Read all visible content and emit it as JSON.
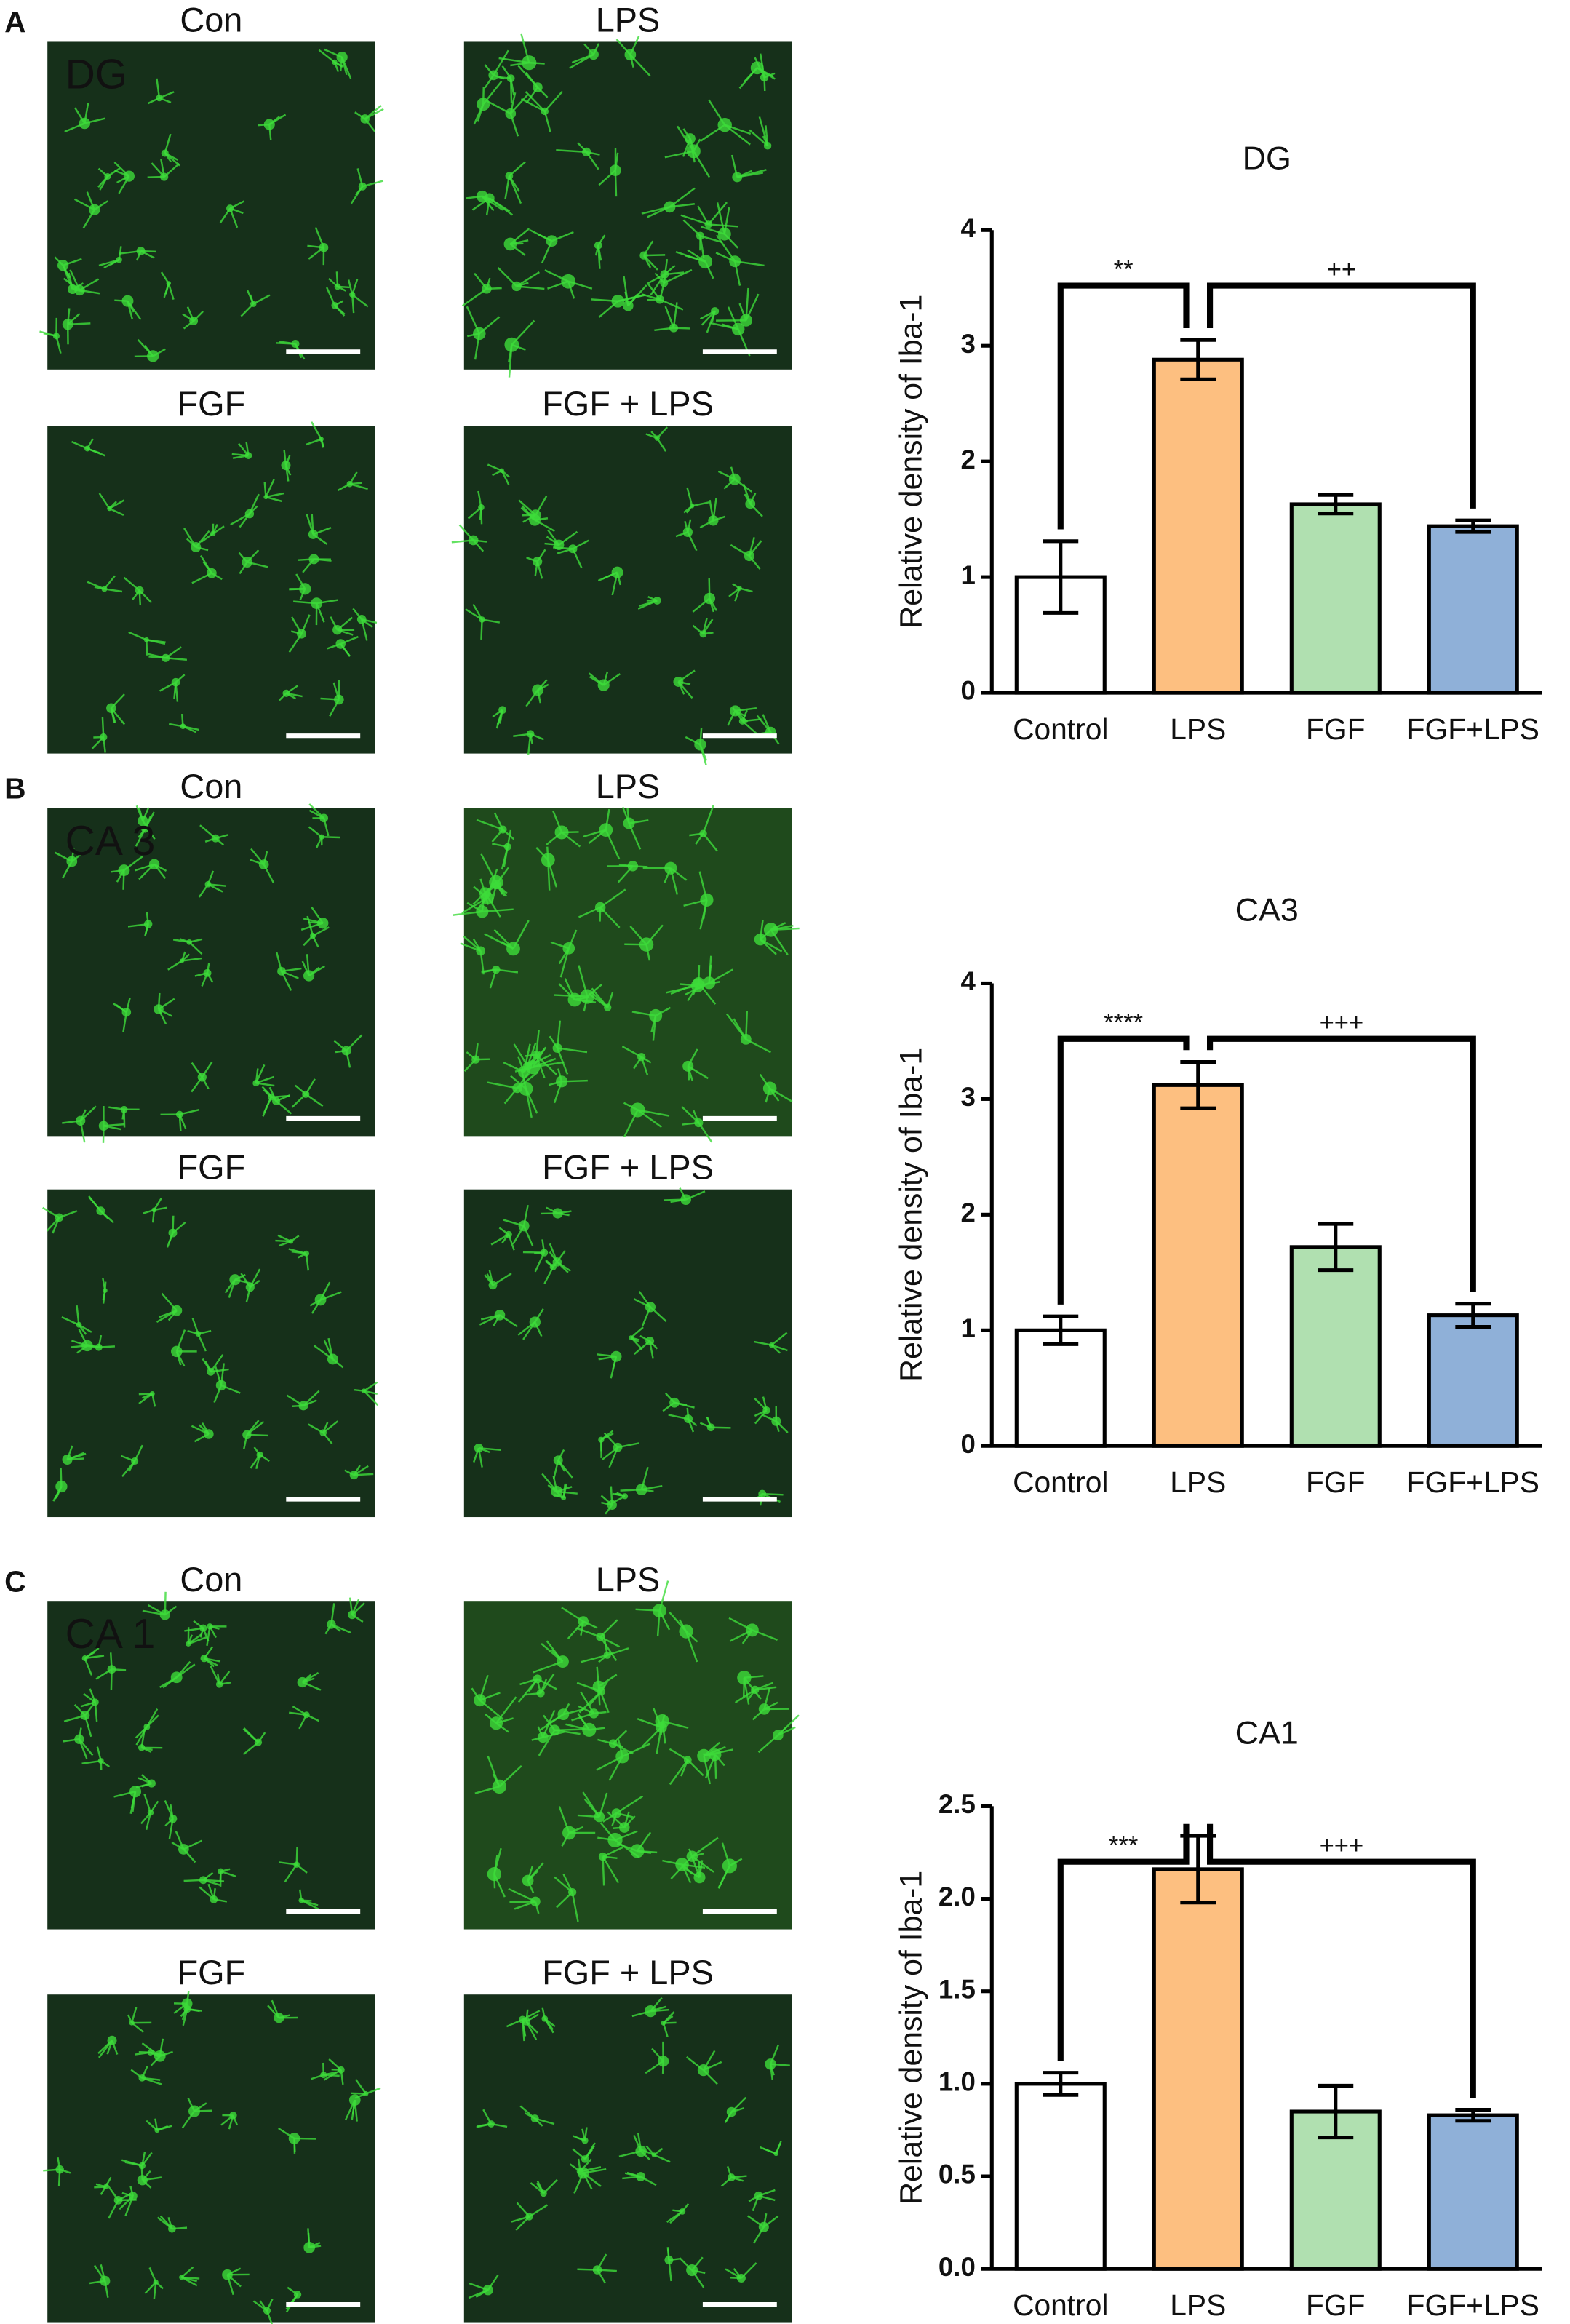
{
  "panels": [
    {
      "letter": "A",
      "region": "DG",
      "images": [
        "Con",
        "LPS",
        "FGF",
        "FGF + LPS"
      ]
    },
    {
      "letter": "B",
      "region": "CA 3",
      "images": [
        "Con",
        "LPS",
        "FGF",
        "FGF + LPS"
      ]
    },
    {
      "letter": "C",
      "region": "CA 1",
      "images": [
        "Con",
        "LPS",
        "FGF",
        "FGF + LPS"
      ]
    }
  ],
  "chart_data": [
    {
      "type": "bar",
      "title": "DG",
      "y_label": "Relative density of Iba-1",
      "categories": [
        "Control",
        "LPS",
        "FGF",
        "FGF+LPS"
      ],
      "values": [
        1.0,
        2.88,
        1.63,
        1.44
      ],
      "errors": [
        0.31,
        0.17,
        0.08,
        0.05
      ],
      "colors": [
        "#ffffff",
        "#fdbf80",
        "#b0e0b0",
        "#8fb0d8"
      ],
      "ylim": [
        0,
        4
      ],
      "yticks": [
        0,
        1,
        2,
        3,
        4
      ],
      "annotations": [
        {
          "label": "**",
          "between": [
            "Control",
            "LPS"
          ]
        },
        {
          "label": "++",
          "between": [
            "LPS",
            "FGF+LPS"
          ]
        }
      ]
    },
    {
      "type": "bar",
      "title": "CA3",
      "y_label": "Relative density of Iba-1",
      "categories": [
        "Control",
        "LPS",
        "FGF",
        "FGF+LPS"
      ],
      "values": [
        1.0,
        3.12,
        1.72,
        1.13
      ],
      "errors": [
        0.12,
        0.2,
        0.2,
        0.1
      ],
      "colors": [
        "#ffffff",
        "#fdbf80",
        "#b0e0b0",
        "#8fb0d8"
      ],
      "ylim": [
        0,
        4
      ],
      "yticks": [
        0,
        1,
        2,
        3,
        4
      ],
      "annotations": [
        {
          "label": "****",
          "between": [
            "Control",
            "LPS"
          ]
        },
        {
          "label": "+++",
          "between": [
            "LPS",
            "FGF+LPS"
          ]
        }
      ]
    },
    {
      "type": "bar",
      "title": "CA1",
      "y_label": "Relative density of Iba-1",
      "categories": [
        "Control",
        "LPS",
        "FGF",
        "FGF+LPS"
      ],
      "values": [
        1.0,
        2.16,
        0.85,
        0.83
      ],
      "errors": [
        0.06,
        0.18,
        0.14,
        0.03
      ],
      "colors": [
        "#ffffff",
        "#fdbf80",
        "#b0e0b0",
        "#8fb0d8"
      ],
      "ylim": [
        0,
        2.5
      ],
      "yticks": [
        {
          "value": 0,
          "label": "0.0"
        },
        0.5,
        {
          "value": 1,
          "label": "1.0"
        },
        1.5,
        {
          "value": 2,
          "label": "2.0"
        },
        2.5
      ],
      "annotations": [
        {
          "label": "***",
          "between": [
            "Control",
            "LPS"
          ]
        },
        {
          "label": "+++",
          "between": [
            "LPS",
            "FGF+LPS"
          ]
        }
      ]
    }
  ]
}
